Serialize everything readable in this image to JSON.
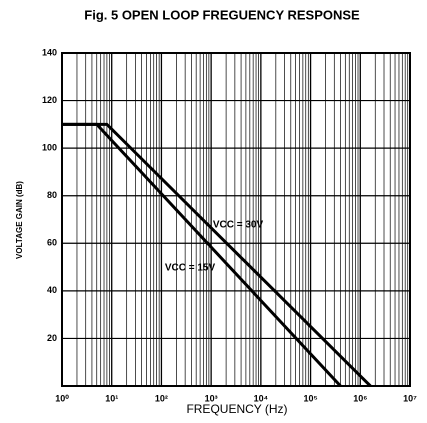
{
  "chart_data": {
    "type": "line",
    "title": "Fig. 5 OPEN LOOP FREGUENCY RESPONSE",
    "x_label": "FREQUENCY (Hz)",
    "y_label": "VOLTAGE GAIN (dB)",
    "log_x": true,
    "grid": true,
    "color": "#000000",
    "xlim": [
      1,
      10000000
    ],
    "xticks": [
      {
        "value": 1,
        "label": "10⁰"
      },
      {
        "value": 10,
        "label": "10¹"
      },
      {
        "value": 100,
        "label": "10²"
      },
      {
        "value": 1000,
        "label": "10³"
      },
      {
        "value": 10000,
        "label": "10⁴"
      },
      {
        "value": 100000,
        "label": "10⁵"
      },
      {
        "value": 1000000,
        "label": "10⁶"
      },
      {
        "value": 10000000,
        "label": "10⁷"
      }
    ],
    "ylim": [
      0,
      140
    ],
    "yticks": [
      20,
      40,
      60,
      80,
      100,
      120,
      140
    ],
    "series": [
      {
        "name": "VCC = 15V",
        "x": [
          1,
          5,
          400000
        ],
        "values": [
          110,
          110,
          0
        ]
      },
      {
        "name": "VCC = 30V",
        "x": [
          1,
          8,
          1600000
        ],
        "values": [
          110,
          110,
          0
        ]
      }
    ]
  }
}
